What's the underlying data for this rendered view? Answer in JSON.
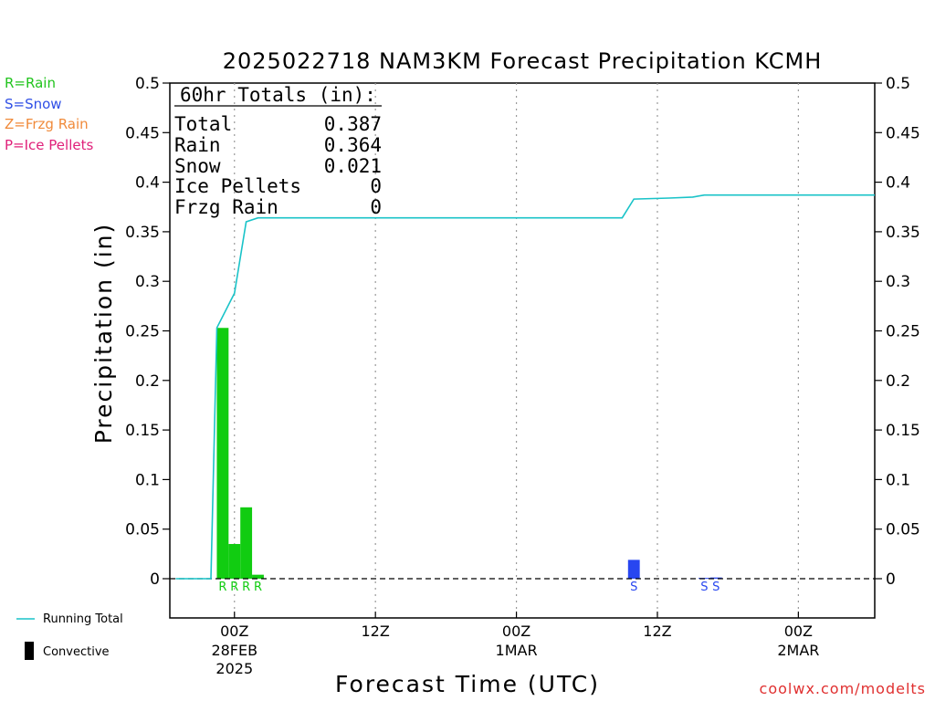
{
  "title": "2025022718 NAM3KM Forecast Precipitation KCMH",
  "legend_keys": [
    {
      "text": "R=Rain",
      "color": "#22c41e"
    },
    {
      "text": "S=Snow",
      "color": "#2f4fe6"
    },
    {
      "text": "Z=Frzg Rain",
      "color": "#f08a3a"
    },
    {
      "text": "P=Ice Pellets",
      "color": "#e0207a"
    }
  ],
  "totals": {
    "header": "60hr Totals (in):",
    "rows": [
      {
        "label": "Total",
        "value": "0.387"
      },
      {
        "label": "Rain",
        "value": "0.364"
      },
      {
        "label": "Snow",
        "value": "0.021"
      },
      {
        "label": "Ice Pellets",
        "value": "0"
      },
      {
        "label": "Frzg Rain",
        "value": "0"
      }
    ]
  },
  "bottom_legend": {
    "running_total": "Running Total",
    "convective": "Convective",
    "running_total_color": "#19c3c8"
  },
  "credit": "coolwx.com/modelts",
  "colors": {
    "rain": "#11cc11",
    "snow": "#2846f0",
    "running_total": "#19c3c8"
  },
  "chart_data": {
    "type": "bar",
    "ylabel": "Precipitation (in)",
    "xlabel": "Forecast Time (UTC)",
    "ylim": [
      0,
      0.5
    ],
    "y_ticks": [
      0,
      0.05,
      0.1,
      0.15,
      0.2,
      0.25,
      0.3,
      0.35,
      0.4,
      0.45,
      0.5
    ],
    "y_tick_labels": [
      "0",
      "0.05",
      "0.1",
      "0.15",
      "0.2",
      "0.25",
      "0.3",
      "0.35",
      "0.4",
      "0.45",
      "0.5"
    ],
    "xlim_hours": [
      -5.5,
      54.5
    ],
    "x_ticks": [
      {
        "hour": 0,
        "label": "00Z",
        "sub": [
          "28FEB",
          "2025"
        ]
      },
      {
        "hour": 12,
        "label": "12Z",
        "sub": []
      },
      {
        "hour": 24,
        "label": "00Z",
        "sub": [
          "1MAR"
        ]
      },
      {
        "hour": 36,
        "label": "12Z",
        "sub": []
      },
      {
        "hour": 48,
        "label": "00Z",
        "sub": [
          "2MAR"
        ]
      }
    ],
    "grid": "vertical dotted at tick marks",
    "zero_line": "dashed",
    "bars": [
      {
        "hour": -1,
        "value": 0.253,
        "type": "rain",
        "label": "R"
      },
      {
        "hour": 0,
        "value": 0.035,
        "type": "rain",
        "label": "R"
      },
      {
        "hour": 1,
        "value": 0.072,
        "type": "rain",
        "label": "R"
      },
      {
        "hour": 2,
        "value": 0.004,
        "type": "rain",
        "label": "R"
      },
      {
        "hour": 34,
        "value": 0.019,
        "type": "snow",
        "label": "S"
      },
      {
        "hour": 40,
        "value": 0.0008,
        "type": "snow",
        "label": "S"
      },
      {
        "hour": 41,
        "value": 0.0012,
        "type": "snow",
        "label": "S"
      }
    ],
    "running_total": {
      "name": "Running Total",
      "points": [
        [
          -5,
          0
        ],
        [
          -2,
          0
        ],
        [
          -1.5,
          0.253
        ],
        [
          0,
          0.288
        ],
        [
          1,
          0.36
        ],
        [
          2,
          0.364
        ],
        [
          33,
          0.364
        ],
        [
          34,
          0.383
        ],
        [
          37,
          0.384
        ],
        [
          39,
          0.385
        ],
        [
          40,
          0.387
        ],
        [
          54.5,
          0.387
        ]
      ]
    }
  }
}
